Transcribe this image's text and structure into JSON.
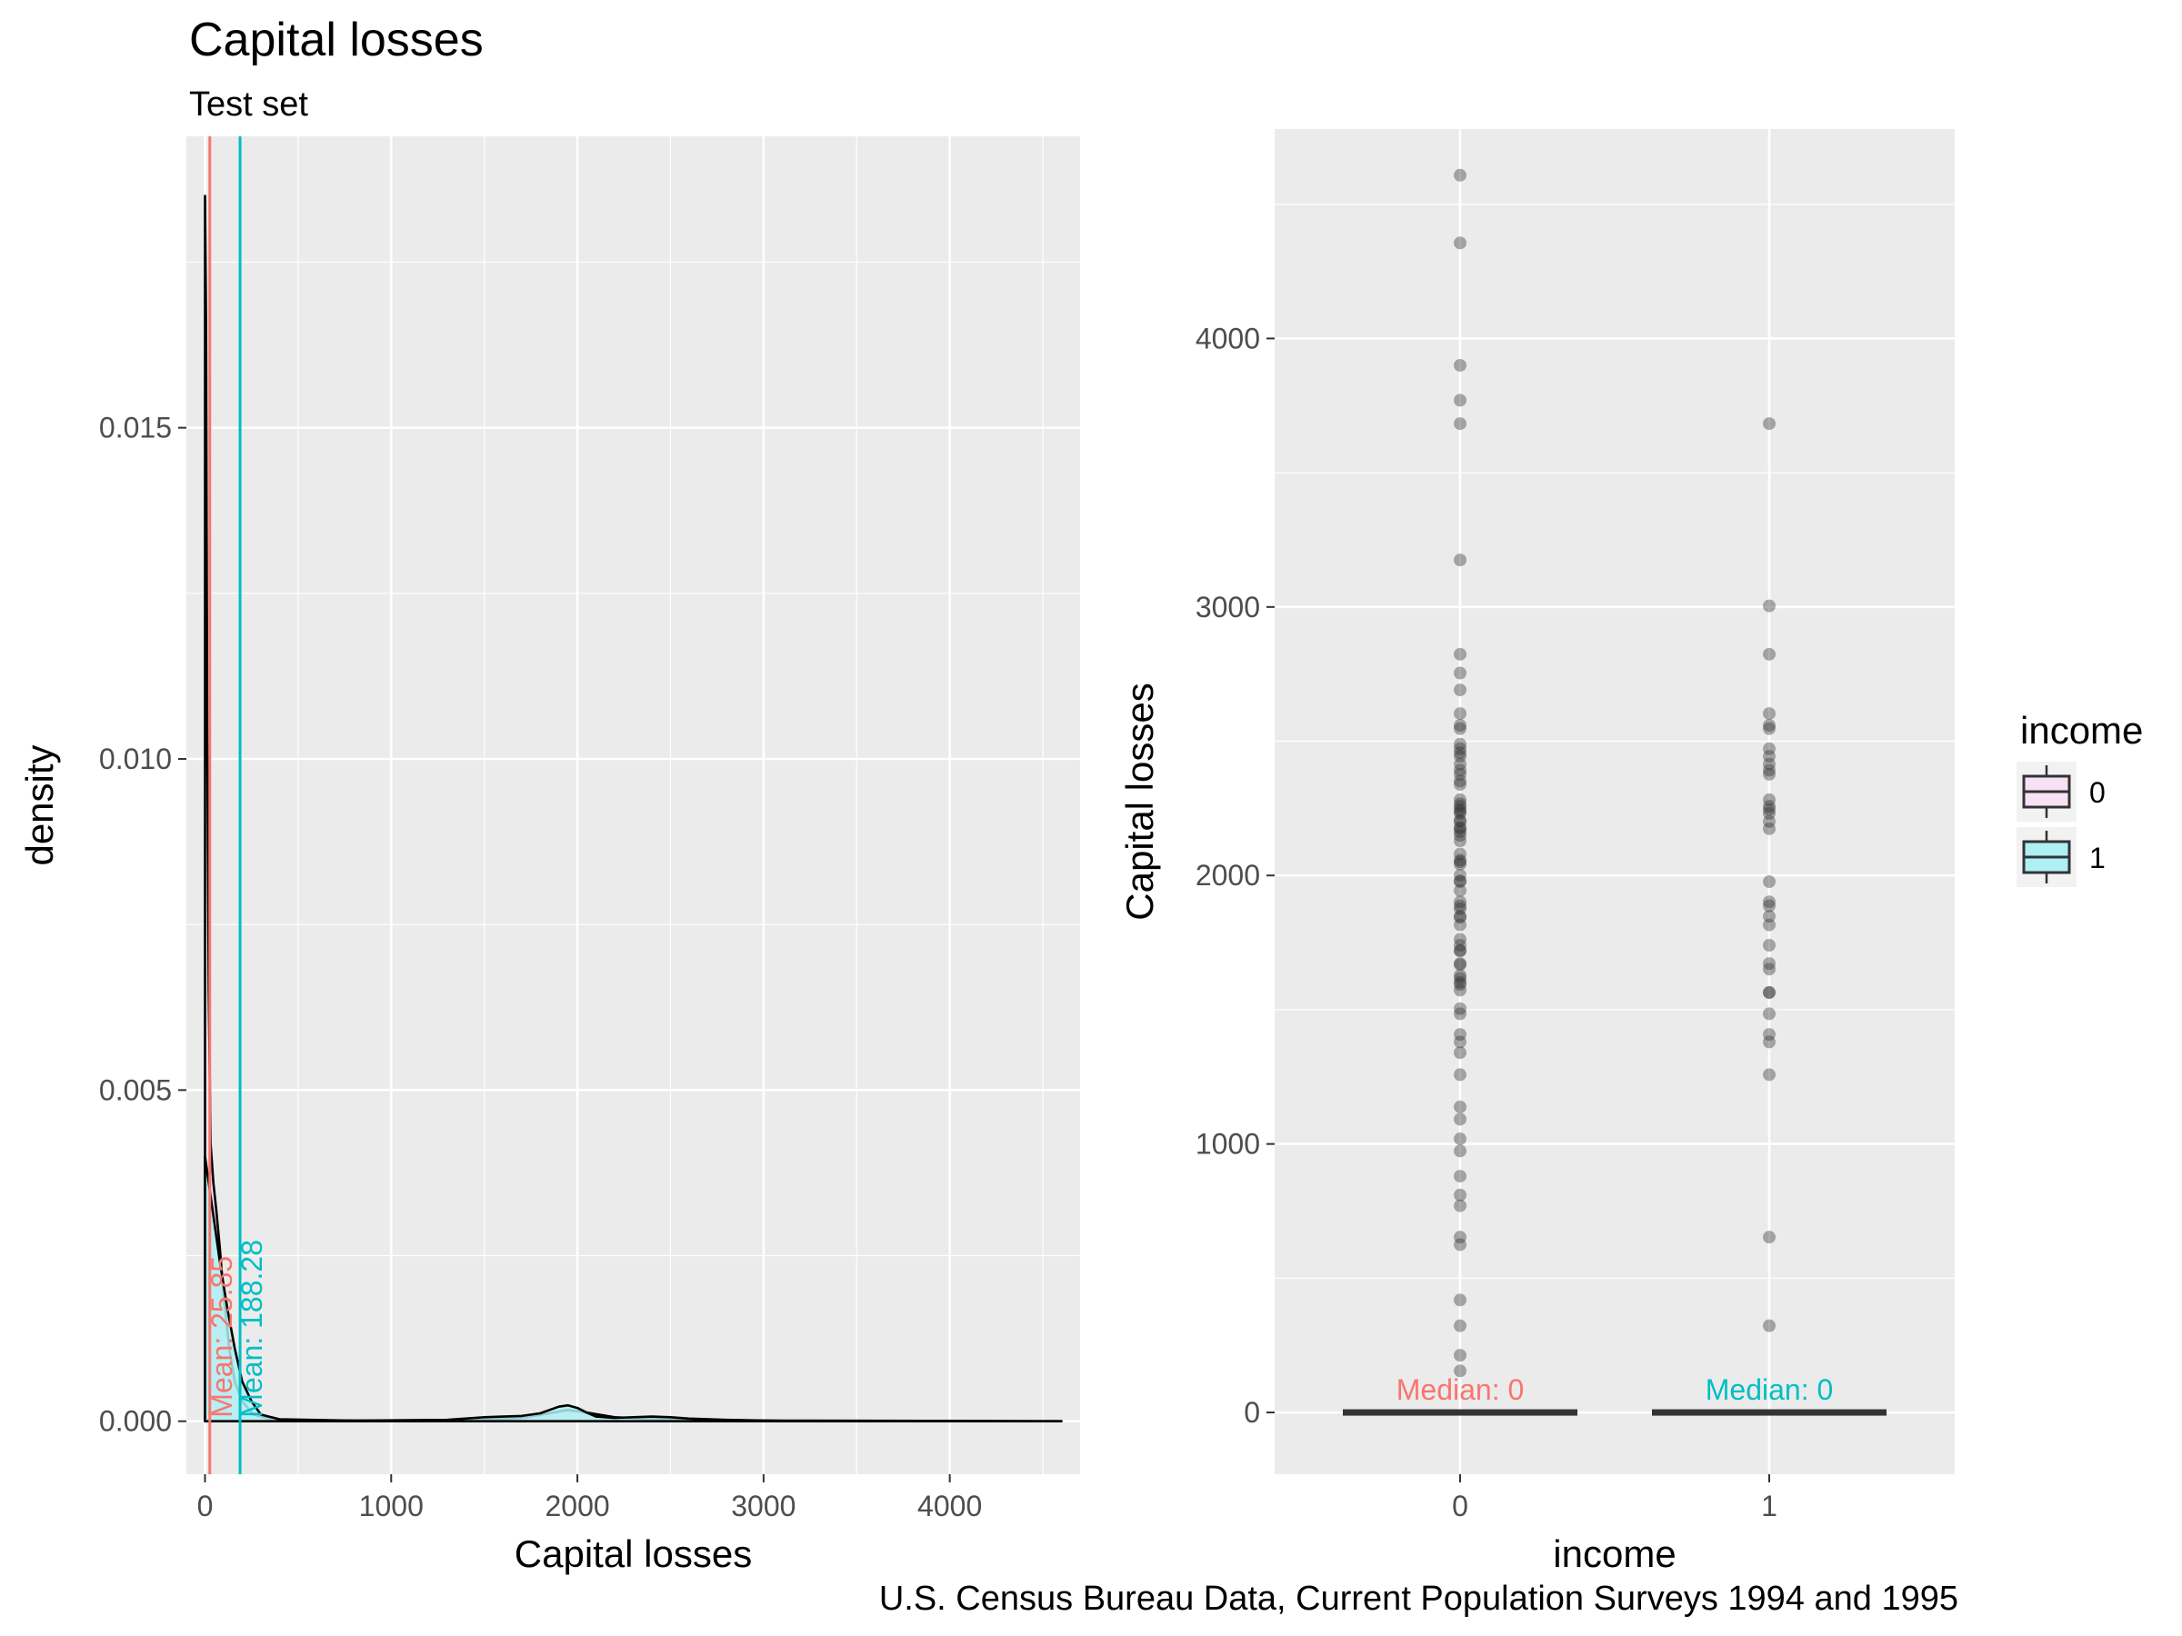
{
  "title": "Capital losses",
  "subtitle": "Test set",
  "caption": "U.S. Census Bureau Data, Current Population Surveys 1994 and 1995",
  "colors": {
    "class0": "#F8766D",
    "class1": "#00BFC4",
    "fill0": "#F7E1F5",
    "fill1": "#AEF0F3",
    "panel": "#EBEBEB"
  },
  "chart_data": [
    {
      "type": "area",
      "name_hint": "density",
      "xlabel": "Capital losses",
      "ylabel": "density",
      "xlim": [
        -100,
        4700
      ],
      "ylim": [
        -0.0008,
        0.0194
      ],
      "x_ticks": [
        0,
        1000,
        2000,
        3000,
        4000
      ],
      "x_tick_labels": [
        "0",
        "1000",
        "2000",
        "3000",
        "4000"
      ],
      "y_ticks": [
        0.0,
        0.005,
        0.01,
        0.015
      ],
      "y_tick_labels": [
        "0.000",
        "0.005",
        "0.010",
        "0.015"
      ],
      "grid": true,
      "series": [
        {
          "class": "0",
          "curve_x": [
            0,
            6,
            12,
            20,
            30,
            45,
            60,
            80,
            100,
            130,
            160,
            200,
            260,
            350,
            500,
            1000,
            1500,
            1700,
            1850,
            1950,
            2050,
            2200,
            2350,
            2500,
            2700,
            3000,
            4000,
            4600
          ],
          "curve_y": [
            0.0185,
            0.0165,
            0.0105,
            0.0065,
            0.0042,
            0.0036,
            0.0032,
            0.0026,
            0.0019,
            0.0011,
            0.0006,
            0.0003,
            0.0001,
            3e-05,
            1e-05,
            1e-05,
            2e-05,
            5e-05,
            0.00012,
            0.00017,
            0.00013,
            6e-05,
            4e-05,
            3e-05,
            2e-05,
            1e-05,
            5e-06,
            2e-06
          ],
          "mean": 25.85,
          "mean_label": "Mean: 25.85"
        },
        {
          "class": "1",
          "curve_x": [
            0,
            40,
            80,
            120,
            160,
            200,
            250,
            300,
            400,
            800,
            1300,
            1500,
            1600,
            1700,
            1800,
            1900,
            1950,
            2000,
            2050,
            2100,
            2200,
            2300,
            2400,
            2500,
            2600,
            2800,
            3100,
            4000
          ],
          "curve_y": [
            0.004,
            0.0032,
            0.0024,
            0.0017,
            0.0011,
            0.0006,
            0.0003,
            0.0001,
            3e-05,
            1e-05,
            2e-05,
            6e-05,
            7e-05,
            8e-05,
            0.00012,
            0.00022,
            0.00024,
            0.0002,
            0.00013,
            7e-05,
            5e-05,
            6e-05,
            7e-05,
            6e-05,
            4e-05,
            2e-05,
            5e-06,
            0.0
          ],
          "mean": 188.28,
          "mean_label": "Mean: 188.28"
        }
      ]
    },
    {
      "type": "scatter",
      "name_hint": "boxplot-by-income",
      "xlabel": "income",
      "ylabel": "Capital losses",
      "categories": [
        "0",
        "1"
      ],
      "ylim": [
        -230,
        4780
      ],
      "y_ticks": [
        0,
        1000,
        2000,
        3000,
        4000
      ],
      "y_tick_labels": [
        "0",
        "1000",
        "2000",
        "3000",
        "4000"
      ],
      "grid": true,
      "legend": {
        "title": "income",
        "position": "right",
        "entries": [
          "0",
          "1"
        ]
      },
      "boxes": [
        {
          "category": "0",
          "q1": 0,
          "median": 0,
          "q3": 0,
          "median_label": "Median: 0"
        },
        {
          "category": "1",
          "q1": 0,
          "median": 0,
          "q3": 0,
          "median_label": "Median: 0"
        }
      ],
      "points": {
        "0": [
          155,
          213,
          323,
          419,
          625,
          653,
          770,
          810,
          880,
          974,
          1019,
          1092,
          1138,
          1258,
          1340,
          1380,
          1408,
          1485,
          1504,
          1573,
          1594,
          1602,
          1617,
          1628,
          1668,
          1672,
          1719,
          1721,
          1740,
          1762,
          1816,
          1844,
          1848,
          1876,
          1887,
          1902,
          1944,
          1977,
          1980,
          2001,
          2042,
          2051,
          2057,
          2080,
          2129,
          2149,
          2163,
          2174,
          2179,
          2201,
          2205,
          2231,
          2238,
          2246,
          2258,
          2267,
          2282,
          2339,
          2352,
          2377,
          2392,
          2415,
          2444,
          2457,
          2472,
          2489,
          2547,
          2559,
          2603,
          2691,
          2754,
          2824,
          3175,
          3683,
          3770,
          3900,
          4356,
          4608
        ],
        "1": [
          323,
          653,
          1258,
          1380,
          1408,
          1485,
          1564,
          1564,
          1651,
          1672,
          1740,
          1816,
          1848,
          1887,
          1902,
          1977,
          2174,
          2201,
          2231,
          2246,
          2258,
          2282,
          2377,
          2392,
          2415,
          2444,
          2472,
          2547,
          2559,
          2603,
          2824,
          3004,
          3683
        ]
      }
    }
  ]
}
